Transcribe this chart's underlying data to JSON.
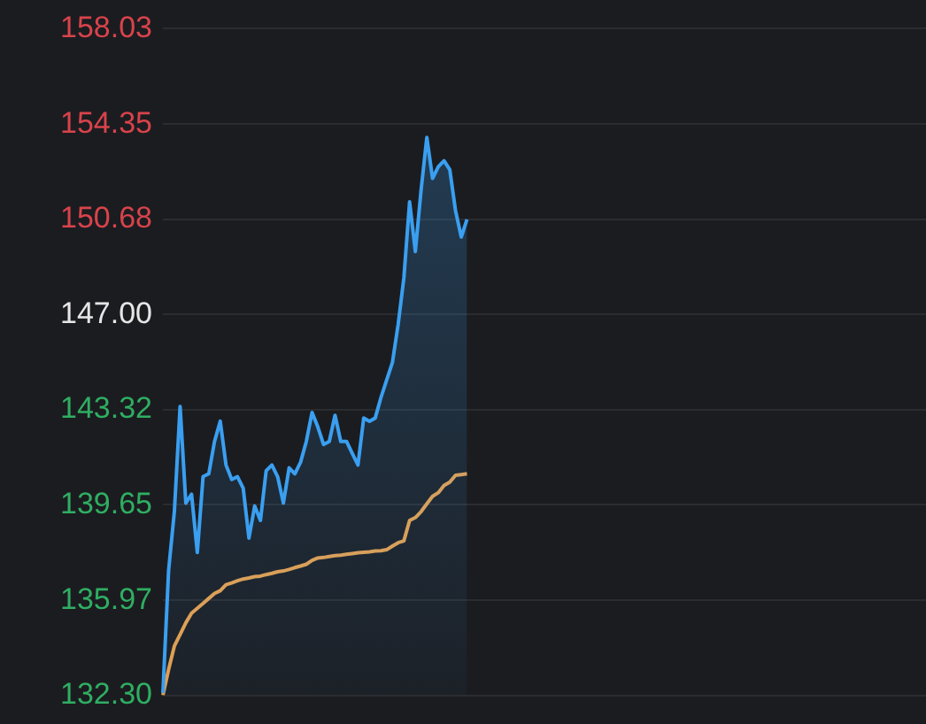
{
  "chart_data": {
    "type": "line",
    "ylim": [
      132.3,
      158.03
    ],
    "yticks": [
      {
        "value": 132.3,
        "label": "132.30"
      },
      135.97,
      139.65,
      143.32,
      {
        "value": 147,
        "label": "147.00"
      },
      150.68,
      154.35,
      158.03
    ],
    "categories": [
      null,
      null,
      null,
      null,
      null,
      null,
      null,
      null,
      null,
      null,
      null,
      null,
      null,
      null,
      null,
      null,
      null,
      null,
      null,
      null,
      null,
      null,
      null,
      null,
      null,
      null,
      null,
      null,
      null,
      null,
      null,
      null,
      null,
      null,
      null,
      null,
      null,
      null,
      null,
      null,
      null,
      null,
      null,
      null,
      null,
      null,
      null,
      null,
      null,
      null,
      null,
      null,
      null,
      null,
      null,
      null,
      null,
      null,
      null,
      null,
      null,
      null,
      null,
      null,
      null,
      null,
      null,
      null,
      null,
      null,
      null,
      null,
      null,
      null,
      null,
      null,
      null,
      null,
      null,
      null,
      null,
      null,
      null,
      null,
      null,
      null,
      null,
      null,
      null,
      null,
      null,
      null,
      null,
      null,
      null,
      null,
      null,
      null,
      null,
      null,
      null,
      null,
      null,
      null,
      null,
      null,
      null,
      null,
      null,
      null,
      null,
      null,
      null,
      null,
      null,
      null,
      null,
      null,
      null,
      null,
      null,
      null,
      null,
      null,
      null,
      null,
      null,
      null,
      null,
      null,
      null,
      null,
      null,
      null
    ],
    "tick_labels": "y",
    "grid": "y",
    "legend": false,
    "marker": "none",
    "series": [
      {
        "type": "area",
        "color": "#3a9ff0",
        "values": [
          132.39,
          137.13,
          139.39,
          143.45,
          139.72,
          140.06,
          137.81,
          140.74,
          140.85,
          142.1,
          142.88,
          141.19,
          140.63,
          140.74,
          140.29,
          138.37,
          139.61,
          139.05,
          140.97,
          141.19,
          140.74,
          139.72,
          141.08,
          140.85,
          141.3,
          142.1,
          143.22,
          142.66,
          141.98,
          142.1,
          143.11,
          142.1,
          142.1,
          141.64,
          141.19,
          143.0,
          142.88,
          143.0,
          143.79,
          144.47,
          145.14,
          146.61,
          148.41,
          151.35,
          149.43,
          151.8,
          153.83,
          152.25,
          152.7,
          152.93,
          152.59,
          151.01,
          149.99,
          150.67,
          null,
          null,
          null,
          null,
          null,
          null,
          null,
          null,
          null,
          null,
          null,
          null,
          null,
          null,
          null,
          null,
          null,
          null,
          null,
          null,
          null,
          null,
          null,
          null,
          null,
          null,
          null,
          null,
          null,
          null,
          null,
          null,
          null,
          null,
          null,
          null,
          null,
          null,
          null,
          null,
          null,
          null,
          null,
          null,
          null,
          null,
          null,
          null,
          null,
          null,
          null,
          null,
          null,
          null,
          null,
          null,
          null,
          null,
          null,
          null,
          null,
          null,
          null,
          null,
          null,
          null,
          null,
          null,
          null,
          null,
          null,
          null,
          null,
          null,
          null,
          null,
          null,
          null,
          null,
          null
        ]
      },
      {
        "type": "line",
        "color": "#e8a04c",
        "values": [
          132.3,
          133.3,
          134.2,
          134.65,
          135.1,
          135.47,
          135.66,
          135.85,
          136.04,
          136.23,
          136.34,
          136.57,
          136.64,
          136.72,
          136.79,
          136.83,
          136.88,
          136.9,
          136.96,
          137.01,
          137.07,
          137.1,
          137.16,
          137.23,
          137.29,
          137.36,
          137.51,
          137.6,
          137.62,
          137.66,
          137.69,
          137.71,
          137.74,
          137.77,
          137.8,
          137.82,
          137.84,
          137.87,
          137.88,
          137.92,
          138.06,
          138.19,
          138.26,
          139.05,
          139.16,
          139.39,
          139.69,
          139.98,
          140.12,
          140.4,
          140.53,
          140.79,
          140.82,
          140.85,
          null,
          null,
          null,
          null,
          null,
          null,
          null,
          null,
          null,
          null,
          null,
          null,
          null,
          null,
          null,
          null,
          null,
          null,
          null,
          null,
          null,
          null,
          null,
          null,
          null,
          null,
          null,
          null,
          null,
          null,
          null,
          null,
          null,
          null,
          null,
          null,
          null,
          null,
          null,
          null,
          null,
          null,
          null,
          null,
          null,
          null,
          null,
          null,
          null,
          null,
          null,
          null,
          null,
          null,
          null,
          null,
          null,
          null,
          null,
          null,
          null,
          null,
          null,
          null,
          null,
          null,
          null,
          null,
          null,
          null,
          null,
          null,
          null,
          null,
          null,
          null,
          null,
          null,
          null,
          null
        ]
      }
    ]
  }
}
